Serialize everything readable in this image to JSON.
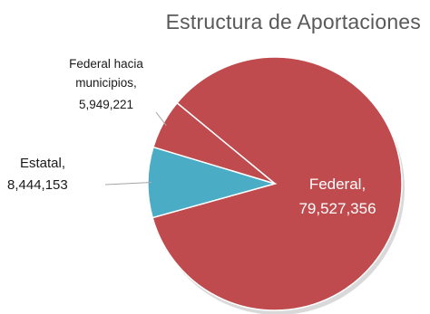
{
  "chart_data": {
    "type": "pie",
    "title": "Estructura de Aportaciones",
    "slices": [
      {
        "name": "Federal",
        "value": 79527356,
        "value_label": "79,527,356",
        "color": "#BF4B4F"
      },
      {
        "name": "Estatal",
        "value": 8444153,
        "value_label": "8,444,153",
        "color": "#4BACC6"
      },
      {
        "name": "Federal hacia municipios",
        "value": 5949221,
        "value_label": "5,949,221",
        "color": "#BF4B4F"
      }
    ]
  }
}
